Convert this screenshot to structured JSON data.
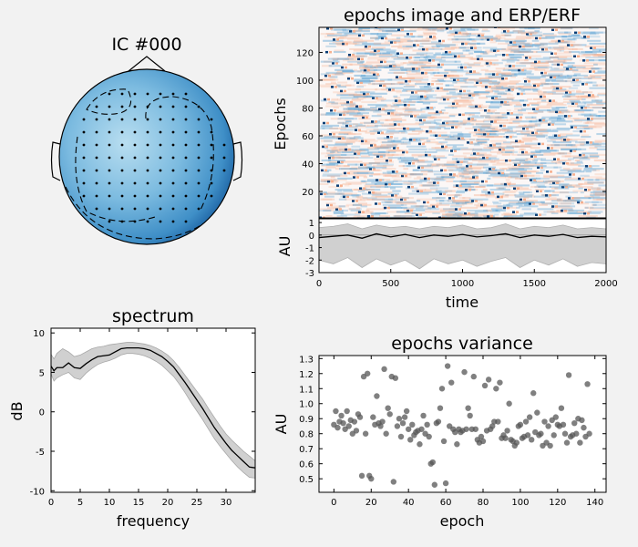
{
  "colors": {
    "background": "#f2f2f2",
    "line": "#000000",
    "band": "#d0d0d0",
    "scatter": "#555555",
    "topo_light": "#a9d3ea",
    "topo_mid": "#6fb0d8",
    "topo_dark": "#08519c",
    "image_pos": "#f6b08f",
    "image_neg": "#4a9ad0",
    "image_strong": "#0b3e75"
  },
  "chart_data": [
    {
      "type": "heatmap",
      "panel": "topomap",
      "title": "IC #000",
      "sensor_count": 112,
      "note_values": "component weights over scalp, blue colormap"
    },
    {
      "type": "heatmap",
      "panel": "epochs_image",
      "title": "epochs image and ERP/ERF",
      "ylabel": "Epochs",
      "ylim": [
        1,
        138
      ],
      "yticks": [
        20,
        40,
        60,
        80,
        100,
        120
      ],
      "n_epochs": 138,
      "xlim": [
        0,
        2000
      ],
      "grid": false
    },
    {
      "type": "line",
      "panel": "erp",
      "xlabel": "time",
      "ylabel": "AU",
      "xlim": [
        0,
        2000
      ],
      "xticks": [
        0,
        500,
        1000,
        1500,
        2000
      ],
      "ylim": [
        -3,
        1.3
      ],
      "yticks": [
        1,
        0,
        -1,
        -2,
        -3
      ],
      "x": [
        0,
        100,
        200,
        300,
        400,
        500,
        600,
        700,
        800,
        900,
        1000,
        1100,
        1200,
        1300,
        1400,
        1500,
        1600,
        1700,
        1800,
        1900,
        2000
      ],
      "mean": [
        -0.2,
        -0.1,
        0.0,
        -0.25,
        0.1,
        -0.15,
        0.05,
        -0.2,
        0.0,
        -0.1,
        0.05,
        -0.15,
        -0.05,
        0.1,
        -0.2,
        0.0,
        -0.1,
        0.05,
        -0.2,
        -0.1,
        -0.15
      ],
      "upper": [
        0.6,
        0.7,
        0.9,
        0.5,
        0.8,
        0.6,
        0.7,
        0.5,
        0.7,
        0.6,
        0.8,
        0.5,
        0.6,
        0.9,
        0.5,
        0.7,
        0.6,
        0.8,
        0.5,
        0.6,
        0.5
      ],
      "lower": [
        -2.0,
        -2.3,
        -1.8,
        -2.6,
        -1.9,
        -2.4,
        -2.0,
        -2.7,
        -1.9,
        -2.3,
        -2.0,
        -2.5,
        -2.1,
        -1.8,
        -2.6,
        -2.0,
        -2.4,
        -1.9,
        -2.5,
        -2.2,
        -2.3
      ]
    },
    {
      "type": "line",
      "panel": "spectrum",
      "title": "spectrum",
      "xlabel": "frequency",
      "ylabel": "dB",
      "xlim": [
        0,
        35
      ],
      "xticks": [
        0,
        5,
        10,
        15,
        20,
        25,
        30
      ],
      "ylim": [
        -10.2,
        10.6
      ],
      "yticks": [
        10,
        5,
        0,
        -5,
        -10
      ],
      "x": [
        0,
        0.5,
        1,
        2,
        3,
        4,
        5,
        6,
        7,
        8,
        9,
        10,
        11,
        12,
        13,
        14,
        15,
        16,
        17,
        18,
        19,
        20,
        21,
        22,
        23,
        24,
        25,
        26,
        27,
        28,
        29,
        30,
        31,
        32,
        33,
        34,
        35
      ],
      "mean": [
        5.8,
        5.2,
        5.6,
        5.6,
        6.2,
        5.6,
        5.5,
        6.1,
        6.6,
        7.0,
        7.1,
        7.2,
        7.6,
        8.0,
        8.1,
        8.1,
        8.1,
        8.0,
        7.8,
        7.4,
        7.0,
        6.4,
        5.7,
        4.7,
        3.7,
        2.6,
        1.5,
        0.4,
        -0.8,
        -2.0,
        -3.0,
        -4.0,
        -4.9,
        -5.6,
        -6.3,
        -7.0,
        -7.1
      ],
      "upper": [
        7.3,
        6.7,
        7.4,
        8.0,
        7.6,
        7.0,
        7.2,
        7.6,
        8.0,
        8.2,
        8.3,
        8.5,
        8.6,
        8.7,
        8.8,
        8.8,
        8.7,
        8.6,
        8.4,
        8.1,
        7.7,
        7.2,
        6.5,
        5.6,
        4.6,
        3.6,
        2.6,
        1.6,
        0.4,
        -0.7,
        -1.8,
        -2.8,
        -3.6,
        -4.3,
        -5.0,
        -5.6,
        -6.2
      ],
      "lower": [
        4.8,
        3.9,
        4.3,
        4.7,
        5.0,
        4.3,
        4.1,
        4.9,
        5.5,
        6.0,
        6.3,
        6.5,
        6.8,
        7.2,
        7.4,
        7.4,
        7.3,
        7.1,
        6.8,
        6.4,
        5.9,
        5.2,
        4.5,
        3.5,
        2.4,
        1.2,
        0.1,
        -1.0,
        -2.2,
        -3.4,
        -4.4,
        -5.3,
        -6.2,
        -7.0,
        -7.7,
        -8.3,
        -8.4
      ]
    },
    {
      "type": "scatter",
      "panel": "variance",
      "title": "epochs variance",
      "xlabel": "epoch",
      "ylabel": "AU",
      "xlim": [
        -8,
        146
      ],
      "xticks": [
        0,
        20,
        40,
        60,
        80,
        100,
        120,
        140
      ],
      "ylim": [
        0.41,
        1.32
      ],
      "yticks": [
        0.5,
        0.6,
        0.7,
        0.8,
        0.9,
        1.0,
        1.1,
        1.2,
        1.3
      ],
      "x": [
        0,
        1,
        2,
        3,
        4,
        5,
        6,
        7,
        8,
        9,
        10,
        11,
        12,
        13,
        14,
        15,
        16,
        17,
        18,
        19,
        20,
        21,
        22,
        23,
        24,
        25,
        26,
        27,
        28,
        29,
        30,
        31,
        32,
        33,
        34,
        35,
        36,
        37,
        38,
        39,
        40,
        41,
        42,
        43,
        44,
        45,
        46,
        47,
        48,
        49,
        50,
        51,
        52,
        53,
        54,
        55,
        56,
        57,
        58,
        59,
        60,
        61,
        62,
        63,
        64,
        65,
        66,
        67,
        68,
        69,
        70,
        71,
        72,
        73,
        74,
        75,
        76,
        77,
        78,
        79,
        80,
        81,
        82,
        83,
        84,
        85,
        86,
        87,
        88,
        89,
        90,
        91,
        92,
        93,
        94,
        95,
        96,
        97,
        98,
        99,
        100,
        101,
        102,
        103,
        104,
        105,
        106,
        107,
        108,
        109,
        110,
        111,
        112,
        113,
        114,
        115,
        116,
        117,
        118,
        119,
        120,
        121,
        122,
        123,
        124,
        125,
        126,
        127,
        128,
        129,
        130,
        131,
        132,
        133,
        134,
        135,
        136,
        137
      ],
      "y": [
        0.86,
        0.95,
        0.84,
        0.88,
        0.92,
        0.87,
        0.83,
        0.95,
        0.85,
        0.89,
        0.8,
        0.88,
        0.82,
        0.93,
        0.91,
        0.52,
        1.18,
        0.8,
        1.2,
        0.52,
        0.5,
        0.91,
        0.86,
        1.05,
        0.87,
        0.85,
        0.88,
        1.23,
        0.8,
        0.97,
        0.93,
        1.18,
        0.48,
        1.17,
        0.85,
        0.9,
        0.78,
        0.87,
        0.91,
        0.95,
        0.83,
        0.76,
        0.86,
        0.79,
        0.81,
        0.82,
        0.73,
        0.83,
        0.92,
        0.8,
        0.86,
        0.78,
        0.6,
        0.61,
        0.46,
        0.87,
        0.88,
        0.97,
        1.1,
        0.75,
        0.47,
        1.25,
        0.85,
        1.14,
        0.83,
        0.81,
        0.73,
        0.83,
        0.81,
        0.82,
        1.21,
        0.83,
        0.97,
        0.92,
        0.83,
        1.18,
        0.83,
        0.76,
        0.74,
        0.78,
        0.75,
        1.12,
        0.82,
        1.16,
        0.83,
        0.85,
        0.88,
        1.1,
        0.88,
        1.14,
        0.77,
        0.79,
        0.77,
        0.82,
        1.0,
        0.76,
        0.75,
        0.72,
        0.74,
        0.85,
        0.86,
        0.77,
        0.78,
        0.88,
        0.79,
        0.91,
        0.76,
        1.07,
        0.81,
        0.94,
        0.79,
        0.8,
        0.72,
        0.88,
        0.74,
        0.85,
        0.72,
        0.89,
        0.79,
        0.91,
        0.86,
        0.85,
        0.97,
        0.86,
        0.8,
        0.74,
        1.19,
        0.78,
        0.79,
        0.87,
        0.8,
        0.9,
        0.74,
        0.89,
        0.84,
        0.78,
        1.13,
        0.8
      ]
    }
  ]
}
